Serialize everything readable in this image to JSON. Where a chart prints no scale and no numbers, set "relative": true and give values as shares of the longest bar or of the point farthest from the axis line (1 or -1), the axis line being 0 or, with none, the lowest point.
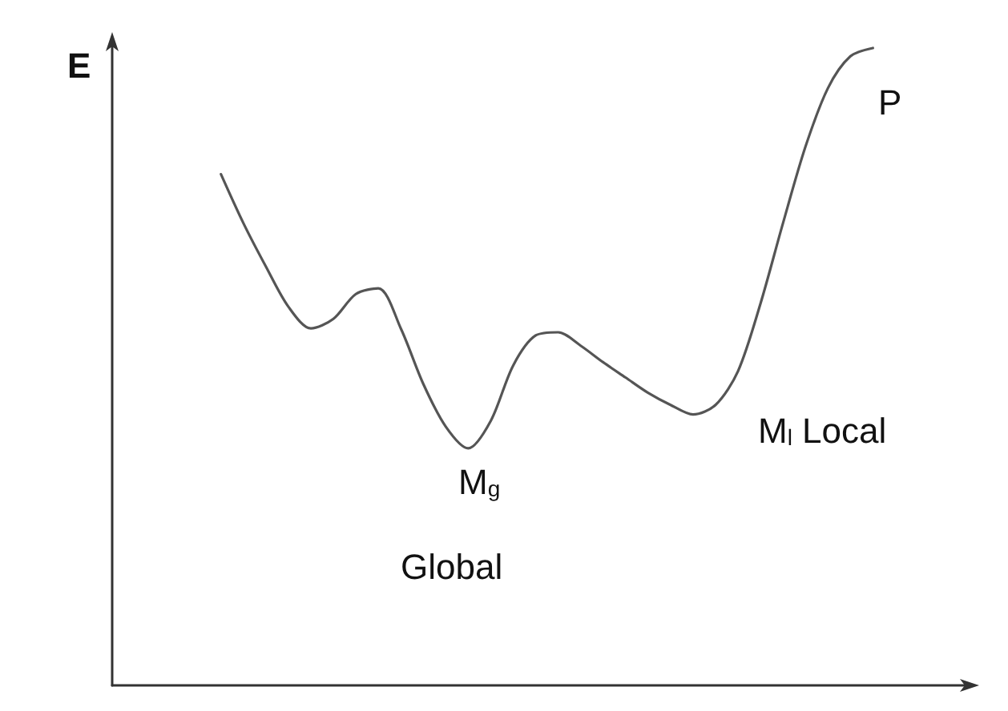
{
  "chart_data": {
    "type": "line",
    "relative": true,
    "ylabel": "E",
    "categories": [
      null,
      null,
      null,
      null,
      null,
      null,
      null,
      null,
      null,
      null,
      null,
      null,
      null,
      null,
      null,
      null,
      null,
      null,
      null,
      null,
      null,
      null,
      null,
      null,
      null,
      null,
      null,
      null,
      null,
      null
    ],
    "series": [
      {
        "color": "#555555",
        "values": [
          0.802,
          0.725,
          0.657,
          0.594,
          0.56,
          0.575,
          0.614,
          0.623,
          0.56,
          0.473,
          0.406,
          0.372,
          0.415,
          0.502,
          0.549,
          0.554,
          0.533,
          0.507,
          0.483,
          0.459,
          0.44,
          0.425,
          0.44,
          0.493,
          0.599,
          0.725,
          0.845,
          0.937,
          0.987,
          1
        ]
      }
    ],
    "annotations": [
      "P",
      "M$_{g}$",
      "Global",
      "M$_{l}$ Local"
    ],
    "grid": false,
    "marker": "none",
    "line_style": "solid"
  }
}
